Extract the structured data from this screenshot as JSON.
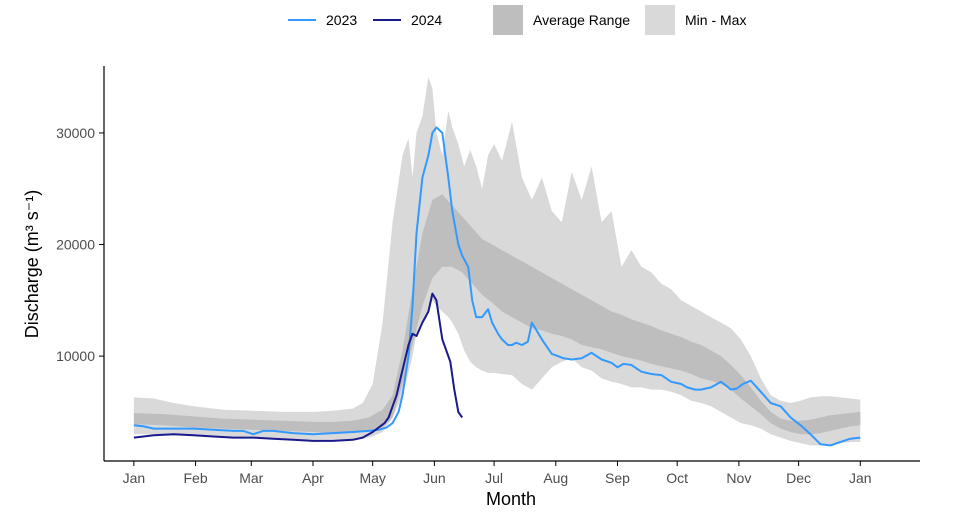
{
  "colors": {
    "series_2023": "#3399FF",
    "series_2024": "#1A1A8C",
    "average_range": "#BEBEBE",
    "min_max": "#D9D9D9",
    "axis": "#000000",
    "tick_text": "#4D4D4D"
  },
  "legend": {
    "items": [
      {
        "label": "2023",
        "type": "line",
        "color": "#3399FF"
      },
      {
        "label": "2024",
        "type": "line",
        "color": "#1A1A8C"
      },
      {
        "label": "Average Range",
        "type": "fill",
        "color": "#BEBEBE"
      },
      {
        "label": "Min - Max",
        "type": "fill",
        "color": "#D9D9D9"
      }
    ],
    "placement": "top-center"
  },
  "chart_data": {
    "type": "area",
    "xlabel": "Month",
    "ylabel": "Discharge (m³ s⁻¹)",
    "x_ticks": [
      "Jan",
      "Feb",
      "Mar",
      "Apr",
      "May",
      "Jun",
      "Jul",
      "Aug",
      "Sep",
      "Oct",
      "Nov",
      "Dec",
      "Jan"
    ],
    "xlim": [
      -15,
      395
    ],
    "ylim": [
      600,
      36000
    ],
    "y_ticks": [
      10000,
      20000,
      30000
    ],
    "grid": false,
    "bands": [
      {
        "name": "Min - Max",
        "x": [
          0,
          10,
          20,
          30,
          45,
          60,
          75,
          90,
          100,
          110,
          115,
          120,
          125,
          130,
          135,
          138,
          140,
          142,
          145,
          148,
          150,
          152,
          155,
          158,
          160,
          163,
          166,
          169,
          172,
          175,
          178,
          181,
          185,
          190,
          195,
          200,
          205,
          210,
          215,
          220,
          225,
          230,
          235,
          240,
          245,
          250,
          255,
          260,
          265,
          270,
          275,
          280,
          285,
          290,
          295,
          300,
          305,
          310,
          315,
          320,
          325,
          330,
          335,
          340,
          345,
          350,
          355,
          360,
          365
        ],
        "low": [
          3000,
          3000,
          3000,
          2900,
          2800,
          2700,
          2600,
          2500,
          2500,
          2500,
          2600,
          2800,
          3200,
          4500,
          6500,
          8500,
          10000,
          12000,
          13000,
          14000,
          15000,
          14500,
          14000,
          13500,
          13000,
          12000,
          10500,
          9500,
          9000,
          8700,
          8500,
          8500,
          8400,
          8300,
          7500,
          7000,
          8000,
          9000,
          9500,
          9800,
          9000,
          8700,
          8000,
          7700,
          7500,
          7200,
          7200,
          7000,
          7000,
          6800,
          6500,
          6000,
          5800,
          5500,
          5000,
          4500,
          4000,
          3800,
          3500,
          3000,
          2700,
          2400,
          2200,
          2000,
          2000,
          2100,
          2200,
          2300,
          2300
        ],
        "high": [
          6300,
          6200,
          5800,
          5500,
          5200,
          5100,
          5000,
          5000,
          5100,
          5300,
          5800,
          7500,
          13000,
          22000,
          28000,
          29500,
          26000,
          30000,
          31500,
          35000,
          34000,
          30000,
          28000,
          32000,
          30500,
          29000,
          27000,
          28500,
          27000,
          25000,
          28000,
          29000,
          27500,
          31000,
          26000,
          24000,
          26000,
          23000,
          22000,
          26500,
          24000,
          27000,
          22000,
          23000,
          18000,
          19500,
          18000,
          17500,
          16500,
          16000,
          15000,
          14500,
          14000,
          13500,
          13000,
          12500,
          11500,
          10000,
          8000,
          6500,
          6000,
          5800,
          6000,
          6300,
          6400,
          6400,
          6300,
          6200,
          6100
        ]
      },
      {
        "name": "Average Range",
        "x": [
          0,
          15,
          30,
          45,
          60,
          75,
          90,
          100,
          110,
          118,
          125,
          130,
          135,
          140,
          145,
          150,
          155,
          160,
          165,
          170,
          175,
          180,
          185,
          190,
          195,
          200,
          205,
          210,
          215,
          220,
          225,
          230,
          235,
          240,
          245,
          250,
          255,
          260,
          265,
          270,
          275,
          280,
          285,
          290,
          295,
          300,
          305,
          310,
          315,
          320,
          325,
          330,
          335,
          340,
          345,
          350,
          355,
          360,
          365
        ],
        "low": [
          3900,
          3800,
          3600,
          3500,
          3400,
          3300,
          3200,
          3100,
          3100,
          3300,
          3600,
          4500,
          7500,
          11000,
          14500,
          17000,
          18000,
          18000,
          17500,
          16500,
          15500,
          14800,
          14000,
          13500,
          13000,
          12500,
          12300,
          12000,
          11800,
          11500,
          11000,
          10800,
          10600,
          10300,
          10000,
          9800,
          9600,
          9300,
          9100,
          8900,
          8700,
          8400,
          8000,
          7800,
          7500,
          7000,
          6200,
          5500,
          4800,
          4000,
          3500,
          3200,
          3000,
          3000,
          3100,
          3300,
          3500,
          3700,
          3800
        ],
        "high": [
          4900,
          4800,
          4600,
          4400,
          4300,
          4200,
          4100,
          4100,
          4200,
          4500,
          5200,
          6500,
          10500,
          16000,
          21000,
          24000,
          24500,
          23500,
          22500,
          21500,
          20500,
          20000,
          19500,
          19000,
          18500,
          18000,
          17500,
          17000,
          16500,
          16000,
          15500,
          15000,
          14500,
          14000,
          13700,
          13300,
          13000,
          12700,
          12300,
          12000,
          11700,
          11300,
          11000,
          10500,
          10000,
          9200,
          8300,
          7200,
          6000,
          5000,
          4400,
          4200,
          4200,
          4300,
          4500,
          4700,
          4800,
          4900,
          5000
        ]
      }
    ],
    "series": [
      {
        "name": "2023",
        "color": "#3399FF",
        "x": [
          0,
          5,
          10,
          20,
          30,
          40,
          50,
          55,
          60,
          65,
          70,
          80,
          90,
          100,
          110,
          118,
          123,
          127,
          130,
          133,
          135,
          138,
          140,
          142,
          145,
          148,
          150,
          152,
          155,
          158,
          160,
          163,
          165,
          168,
          170,
          172,
          175,
          178,
          180,
          183,
          185,
          188,
          190,
          192,
          195,
          198,
          200,
          205,
          210,
          213,
          216,
          220,
          225,
          230,
          235,
          240,
          243,
          246,
          250,
          255,
          260,
          265,
          270,
          275,
          278,
          282,
          285,
          290,
          295,
          298,
          300,
          303,
          306,
          310,
          315,
          320,
          325,
          330,
          335,
          340,
          345,
          350,
          355,
          360,
          365
        ],
        "y": [
          3800,
          3700,
          3500,
          3500,
          3500,
          3400,
          3300,
          3300,
          3000,
          3300,
          3300,
          3100,
          3000,
          3100,
          3200,
          3300,
          3400,
          3600,
          4000,
          5000,
          6500,
          10000,
          14500,
          21000,
          26000,
          28000,
          30000,
          30500,
          30000,
          26000,
          23000,
          20000,
          19000,
          18000,
          15000,
          13500,
          13500,
          14200,
          13000,
          12000,
          11500,
          11000,
          11000,
          11200,
          11000,
          11300,
          13000,
          11500,
          10200,
          10000,
          9800,
          9700,
          9800,
          10300,
          9700,
          9400,
          9000,
          9300,
          9200,
          8600,
          8400,
          8300,
          7700,
          7500,
          7200,
          7000,
          7000,
          7200,
          7700,
          7300,
          7000,
          7100,
          7500,
          7800,
          6800,
          5800,
          5500,
          4500,
          3800,
          3000,
          2100,
          2000,
          2300,
          2600,
          2700
        ]
      },
      {
        "name": "2024",
        "color": "#1A1A8C",
        "x": [
          0,
          10,
          20,
          30,
          40,
          50,
          60,
          70,
          80,
          90,
          100,
          110,
          115,
          120,
          123,
          126,
          128,
          130,
          132,
          134,
          136,
          138,
          140,
          142,
          145,
          148,
          150,
          152,
          155,
          157,
          159,
          161,
          163,
          165
        ],
        "y": [
          2700,
          2900,
          3000,
          2900,
          2800,
          2700,
          2700,
          2600,
          2500,
          2400,
          2400,
          2500,
          2700,
          3200,
          3600,
          4000,
          4500,
          5500,
          6500,
          8000,
          9500,
          11000,
          12000,
          11800,
          13000,
          14000,
          15600,
          15000,
          11500,
          10500,
          9500,
          7000,
          5000,
          4500
        ]
      }
    ]
  }
}
